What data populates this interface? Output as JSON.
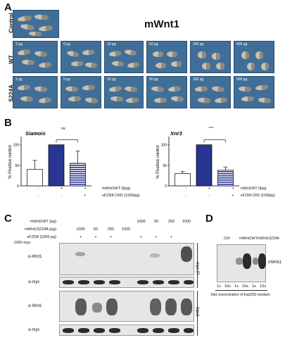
{
  "panel_a": {
    "letter": "A",
    "title": "mWnt1",
    "rows": [
      {
        "label": "Control",
        "doses": [
          ""
        ]
      },
      {
        "label": "WT",
        "doses": [
          "1 pg",
          "5 pg",
          "10 pg",
          "50 pg",
          "100 pg",
          "500 pg"
        ]
      },
      {
        "label": "S224A",
        "doses": [
          "1 pg",
          "5 pg",
          "10 pg",
          "50 pg",
          "100 pg",
          "500 pg"
        ]
      }
    ]
  },
  "panel_b": {
    "letter": "B",
    "ylabel": "% Positive control",
    "row_labels": [
      "mWnt1WT (5pg)",
      "xFZD8 CRD (1000pg)"
    ],
    "charts": [
      {
        "gene": "Siamois",
        "sig": "ns",
        "signs_row1": [
          "-",
          "+",
          "+"
        ],
        "signs_row2": [
          "-",
          "-",
          "+"
        ]
      },
      {
        "gene": "Xnr3",
        "sig": "***",
        "signs_row1": [
          "-",
          "+",
          "+"
        ],
        "signs_row2": [
          "-",
          "-",
          "+"
        ]
      }
    ]
  },
  "chart_data": [
    {
      "type": "bar",
      "title": "Siamois",
      "ylabel": "% Positive control",
      "categories": [
        "Ctrl",
        "mWnt1WT",
        "mWnt1WT + xFZD8 CRD"
      ],
      "values": [
        40,
        100,
        55
      ],
      "errors": [
        22,
        0,
        30
      ],
      "ylim": [
        0,
        120
      ],
      "significance": "ns"
    },
    {
      "type": "bar",
      "title": "Xnr3",
      "ylabel": "% Positive control",
      "categories": [
        "Ctrl",
        "mWnt1WT",
        "mWnt1WT + xFZD8 CRD"
      ],
      "values": [
        30,
        100,
        38
      ],
      "errors": [
        5,
        0,
        8
      ],
      "ylim": [
        0,
        120
      ],
      "significance": "***"
    }
  ],
  "panel_c": {
    "letter": "C",
    "rows": [
      {
        "label": "mWnt1WT (pg)",
        "values": [
          "",
          "",
          "",
          "",
          "",
          "1000",
          "50",
          "250",
          "1000"
        ]
      },
      {
        "label": "mWnt1S224A (pg)",
        "values": [
          "",
          "1000",
          "50",
          "250",
          "1000",
          "",
          "",
          "",
          ""
        ]
      },
      {
        "label": "xFZD8 (1000 pg)",
        "values": [
          "",
          "+",
          "+",
          "+",
          "",
          "+",
          "+",
          "+",
          ""
        ]
      },
      {
        "label": "CRD-myc",
        "values": [
          "",
          "",
          "",
          "",
          "",
          "",
          "",
          "",
          ""
        ]
      }
    ],
    "blot_labels": [
      "α-Wnt1",
      "α-myc",
      "α-Wnt1",
      "α-myc"
    ],
    "side_labels": [
      "myc IP",
      "Input"
    ]
  },
  "panel_d": {
    "letter": "D",
    "groups": [
      "Ctrl",
      "mWnt1WT",
      "mWnt1S224A"
    ],
    "lanes": [
      "1x",
      "10x",
      "1x",
      "10x",
      "1x",
      "10x"
    ],
    "band_label": "mWnt1",
    "caption": "fold concentration of Expi293 medium"
  }
}
